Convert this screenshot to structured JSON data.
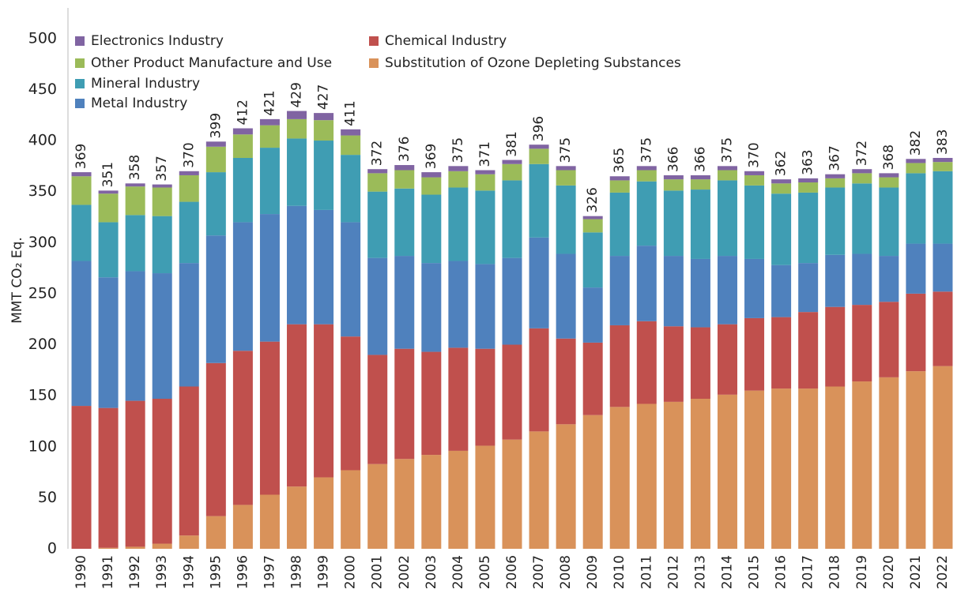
{
  "chart_data": {
    "type": "stacked_bar",
    "y_label": "MMT CO₂ Eq.",
    "categories": [
      "1990",
      "1991",
      "1992",
      "1993",
      "1994",
      "1995",
      "1996",
      "1997",
      "1998",
      "1999",
      "2000",
      "2001",
      "2002",
      "2003",
      "2004",
      "2005",
      "2006",
      "2007",
      "2008",
      "2009",
      "2010",
      "2011",
      "2012",
      "2013",
      "2014",
      "2015",
      "2016",
      "2017",
      "2018",
      "2019",
      "2020",
      "2021",
      "2022"
    ],
    "series": [
      {
        "name": "Substitution of Ozone Depleting Substances",
        "color": "#d9925a",
        "values": [
          0,
          1,
          2,
          5,
          13,
          32,
          43,
          53,
          61,
          70,
          77,
          83,
          88,
          92,
          96,
          101,
          107,
          115,
          122,
          131,
          139,
          142,
          144,
          147,
          151,
          155,
          157,
          157,
          159,
          164,
          168,
          174,
          179
        ]
      },
      {
        "name": "Chemical Industry",
        "color": "#c0504d",
        "values": [
          140,
          137,
          143,
          142,
          146,
          150,
          151,
          150,
          159,
          150,
          131,
          107,
          108,
          101,
          101,
          95,
          93,
          101,
          84,
          71,
          80,
          81,
          74,
          70,
          69,
          71,
          70,
          75,
          78,
          75,
          74,
          76,
          73
        ]
      },
      {
        "name": "Metal Industry",
        "color": "#4f81bd",
        "values": [
          142,
          128,
          127,
          123,
          121,
          125,
          126,
          125,
          116,
          112,
          112,
          95,
          91,
          87,
          85,
          83,
          85,
          89,
          83,
          54,
          68,
          74,
          69,
          67,
          67,
          58,
          51,
          48,
          51,
          50,
          45,
          49,
          47
        ]
      },
      {
        "name": "Mineral Industry",
        "color": "#3f9db3",
        "values": [
          55,
          54,
          55,
          56,
          60,
          62,
          63,
          65,
          66,
          68,
          66,
          65,
          66,
          67,
          72,
          72,
          76,
          72,
          67,
          54,
          62,
          63,
          64,
          68,
          74,
          72,
          70,
          69,
          66,
          69,
          67,
          69,
          71
        ]
      },
      {
        "name": "Other Product Manufacture and Use",
        "color": "#9bbb59",
        "values": [
          28,
          28,
          28,
          28,
          26,
          25,
          23,
          22,
          19,
          20,
          19,
          18,
          18,
          17,
          16,
          16,
          16,
          15,
          15,
          13,
          12,
          11,
          11,
          10,
          10,
          10,
          10,
          10,
          9,
          10,
          10,
          10,
          9
        ]
      },
      {
        "name": "Electronics Industry",
        "color": "#8064a2",
        "values": [
          4,
          3,
          3,
          3,
          4,
          5,
          6,
          6,
          8,
          7,
          6,
          4,
          5,
          5,
          5,
          4,
          4,
          4,
          4,
          3,
          4,
          4,
          4,
          4,
          4,
          4,
          4,
          4,
          4,
          4,
          4,
          4,
          4
        ]
      }
    ],
    "totals": [
      369,
      351,
      358,
      357,
      370,
      399,
      412,
      421,
      429,
      427,
      411,
      372,
      376,
      369,
      375,
      371,
      381,
      396,
      375,
      326,
      365,
      375,
      366,
      366,
      375,
      370,
      362,
      363,
      367,
      372,
      368,
      382,
      383
    ],
    "ylim": [
      0,
      530
    ],
    "yticks": [
      0,
      50,
      100,
      150,
      200,
      250,
      300,
      350,
      400,
      450,
      500
    ],
    "grid": false
  }
}
